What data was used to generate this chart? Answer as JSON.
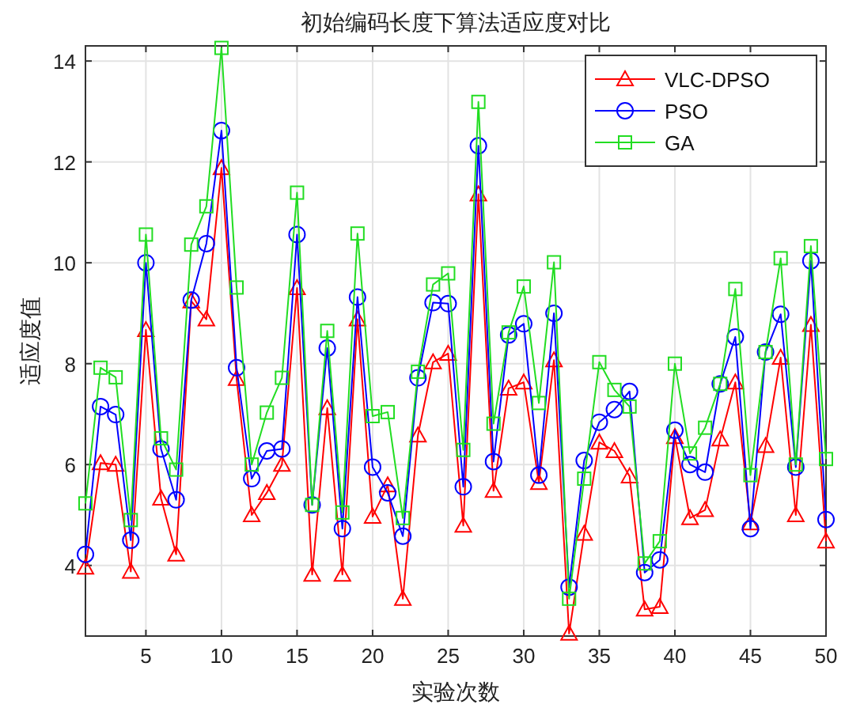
{
  "chart_data": {
    "type": "line",
    "title": "初始编码长度下算法适应度对比",
    "xlabel": "实验次数",
    "ylabel": "适应度值",
    "x": [
      1,
      2,
      3,
      4,
      5,
      6,
      7,
      8,
      9,
      10,
      11,
      12,
      13,
      14,
      15,
      16,
      17,
      18,
      19,
      20,
      21,
      22,
      23,
      24,
      25,
      26,
      27,
      28,
      29,
      30,
      31,
      32,
      33,
      34,
      35,
      36,
      37,
      38,
      39,
      40,
      41,
      42,
      43,
      44,
      45,
      46,
      47,
      48,
      49,
      50
    ],
    "xlim": [
      1,
      50
    ],
    "xticks": [
      5,
      10,
      15,
      20,
      25,
      30,
      35,
      40,
      45,
      50
    ],
    "ylim": [
      2.6,
      14.3
    ],
    "yticks": [
      4,
      6,
      8,
      10,
      12,
      14
    ],
    "grid": true,
    "legend": "top right",
    "series": [
      {
        "name": "VLC-DPSO",
        "color": "#ff0000",
        "marker": "triangle",
        "values": [
          3.96,
          6.03,
          6.0,
          3.88,
          8.67,
          5.33,
          4.22,
          9.24,
          8.88,
          11.88,
          7.7,
          5.0,
          5.44,
          6.0,
          9.5,
          3.82,
          7.12,
          3.82,
          8.88,
          4.97,
          5.59,
          3.34,
          6.58,
          8.03,
          8.2,
          4.79,
          11.36,
          5.48,
          7.51,
          7.63,
          5.64,
          8.07,
          2.65,
          4.63,
          6.44,
          6.27,
          5.77,
          3.13,
          3.18,
          6.55,
          4.94,
          5.1,
          6.5,
          7.63,
          4.84,
          6.37,
          8.12,
          5.0,
          8.77,
          4.48
        ]
      },
      {
        "name": "PSO",
        "color": "#0000ff",
        "marker": "circle",
        "values": [
          4.22,
          7.15,
          6.99,
          4.5,
          10.0,
          6.31,
          5.3,
          9.26,
          10.38,
          12.62,
          7.92,
          5.72,
          6.27,
          6.31,
          10.56,
          5.2,
          8.31,
          4.73,
          9.32,
          5.95,
          5.44,
          4.58,
          7.72,
          9.21,
          9.19,
          5.56,
          12.32,
          6.06,
          8.57,
          8.79,
          5.79,
          9.0,
          3.57,
          6.08,
          6.84,
          7.09,
          7.45,
          3.86,
          4.11,
          6.68,
          6.0,
          5.85,
          7.6,
          8.53,
          4.73,
          8.23,
          8.98,
          5.95,
          10.04,
          4.91
        ]
      },
      {
        "name": "GA",
        "color": "#22dd22",
        "marker": "square",
        "values": [
          5.23,
          7.92,
          7.73,
          4.9,
          10.56,
          6.52,
          5.9,
          10.36,
          11.12,
          14.26,
          9.51,
          6.0,
          7.03,
          7.72,
          11.39,
          5.2,
          8.65,
          5.05,
          10.58,
          6.96,
          7.04,
          4.94,
          7.84,
          9.57,
          9.79,
          6.29,
          13.19,
          6.81,
          8.62,
          9.53,
          7.22,
          10.01,
          3.34,
          5.72,
          8.03,
          7.48,
          7.15,
          4.04,
          4.48,
          8.0,
          6.22,
          6.73,
          7.6,
          9.48,
          5.79,
          8.23,
          10.09,
          6.0,
          10.33,
          6.11
        ]
      }
    ]
  }
}
